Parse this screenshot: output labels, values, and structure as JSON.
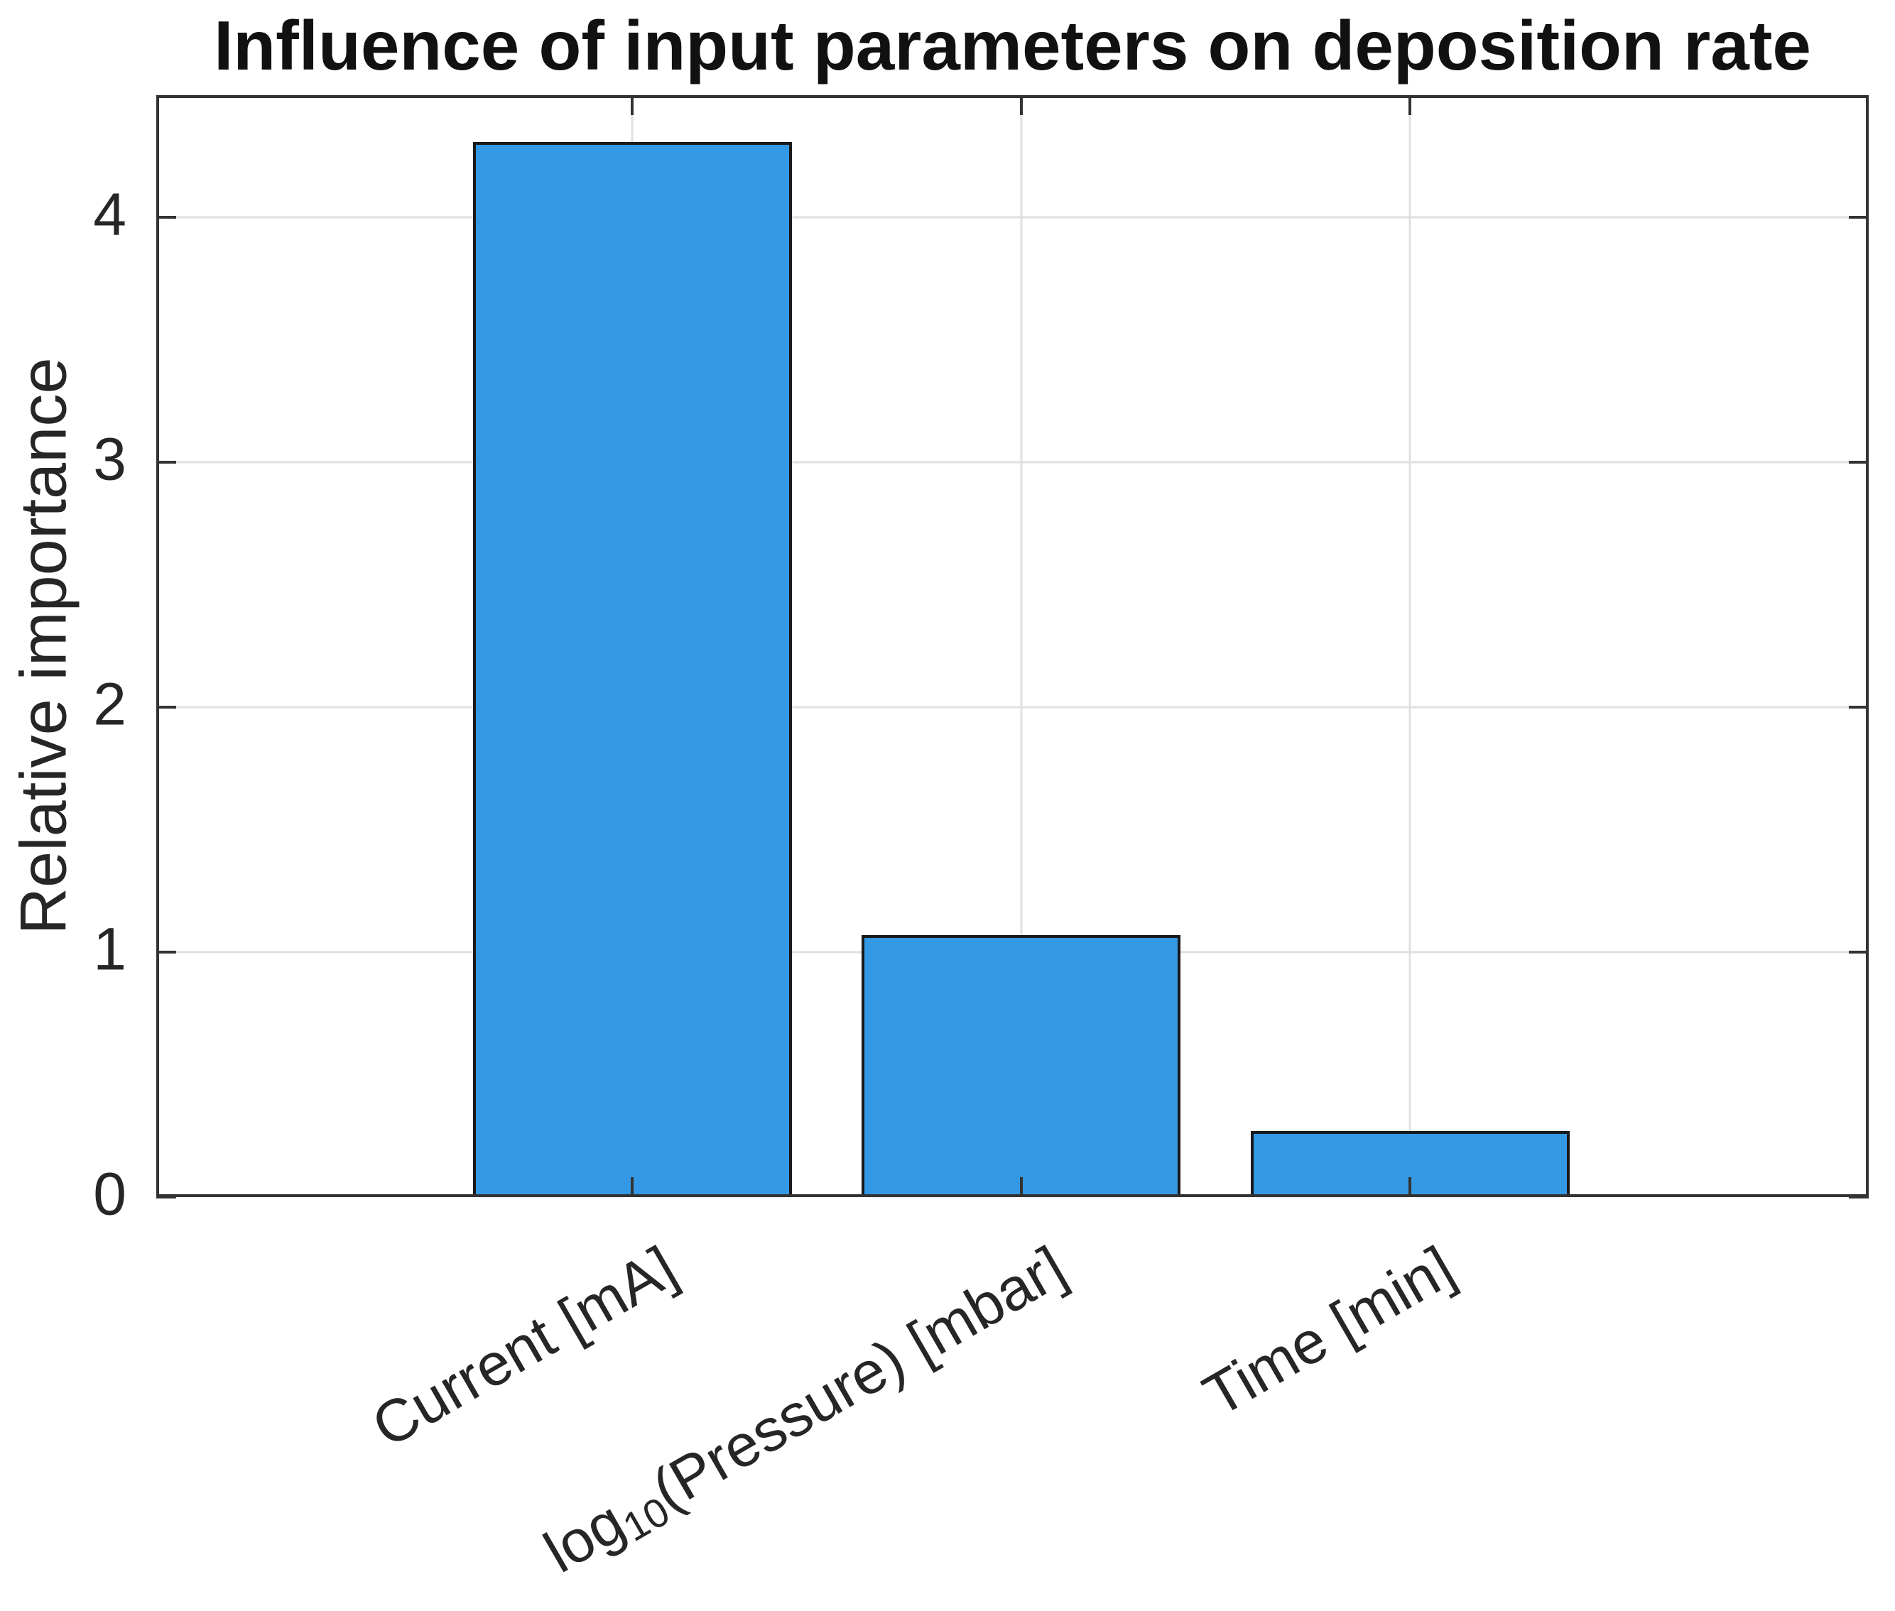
{
  "chart_data": {
    "type": "bar",
    "title": "Influence of input parameters on deposition rate",
    "ylabel": "Relative importance",
    "xlabel": "",
    "categories": [
      "Current [mA]",
      "log10(Pressure) [mbar]",
      "Time [min]"
    ],
    "category_label_parts": [
      [
        {
          "t": "Current [mA]"
        }
      ],
      [
        {
          "t": "log"
        },
        {
          "t": "10",
          "sub": true
        },
        {
          "t": "(Pressure) [mbar]"
        }
      ],
      [
        {
          "t": "Time [min]"
        }
      ]
    ],
    "values": [
      4.31,
      1.07,
      0.27
    ],
    "x_positions": [
      1,
      2,
      3
    ],
    "bar_width": 0.82,
    "xlim": [
      -0.225,
      4.18
    ],
    "ylim": [
      0,
      4.5
    ],
    "yticks": [
      0,
      1,
      2,
      3,
      4
    ],
    "ytick_labels": [
      "0",
      "1",
      "2",
      "3",
      "4"
    ],
    "xtick_angle_deg": 30,
    "grid": "both",
    "legend": "none",
    "colors": {
      "bar_fill": "#3399E5",
      "bar_edge": "#1A1A1A",
      "axis": "#333333",
      "grid": "#E0E0E0",
      "text": "#262626",
      "title_text": "#111111",
      "background": "#FFFFFF"
    }
  }
}
